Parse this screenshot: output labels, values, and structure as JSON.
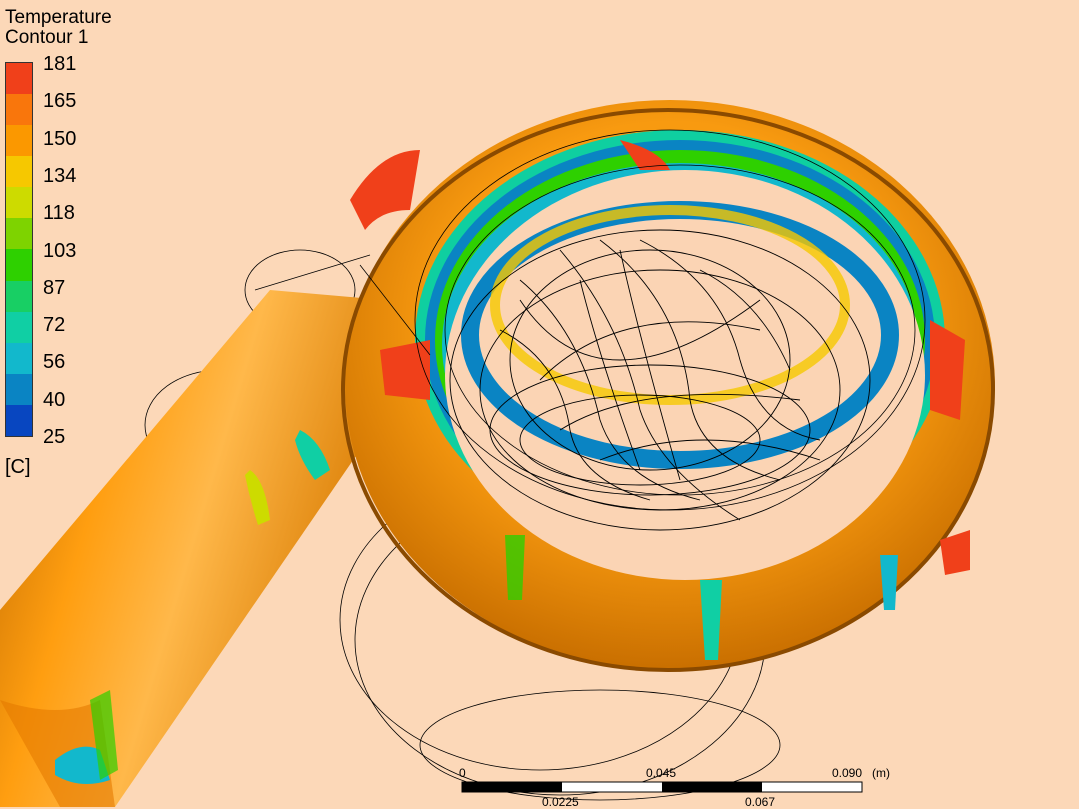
{
  "legend": {
    "title_line1": "Temperature",
    "title_line2": "Contour 1",
    "ticks": [
      "181",
      "165",
      "150",
      "134",
      "118",
      "103",
      "87",
      "72",
      "56",
      "40",
      "25"
    ],
    "unit": "[C]",
    "band_colors": [
      "#f0401a",
      "#f9760c",
      "#fb9800",
      "#f6c800",
      "#cddb00",
      "#7ed300",
      "#2ed000",
      "#18cf64",
      "#10cfa4",
      "#12b8cc",
      "#0a84c3",
      "#0846c0"
    ]
  },
  "scale_bar": {
    "top_labels": [
      "0",
      "0.045",
      "0.090",
      "(m)"
    ],
    "bottom_labels": [
      "0.0225",
      "0.067"
    ]
  }
}
